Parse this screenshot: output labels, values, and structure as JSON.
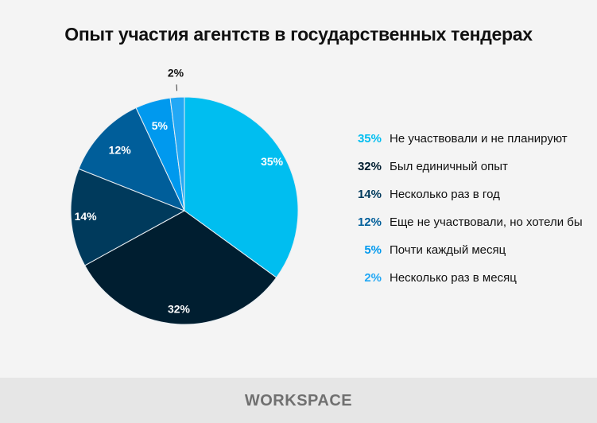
{
  "chart_data": {
    "type": "pie",
    "title": "Опыт участия агентств в государственных тендерах",
    "slices": [
      {
        "label": "Не участвовали и не планируют",
        "value": 35,
        "display": "35%",
        "color": "#00bef0",
        "label_color": "#ffffff"
      },
      {
        "label": "Был единичный опыт",
        "value": 32,
        "display": "32%",
        "color": "#001e30",
        "label_color": "#ffffff"
      },
      {
        "label": "Несколько раз в год",
        "value": 14,
        "display": "14%",
        "color": "#003a5c",
        "label_color": "#ffffff"
      },
      {
        "label": "Еще не участвовали, но хотели бы",
        "value": 12,
        "display": "12%",
        "color": "#005e9a",
        "label_color": "#ffffff"
      },
      {
        "label": "Почти каждый месяц",
        "value": 5,
        "display": "5%",
        "color": "#0099ee",
        "label_color": "#ffffff"
      },
      {
        "label": "Несколько раз в месяц",
        "value": 2,
        "display": "2%",
        "color": "#22a8f5",
        "label_color": "#111111"
      }
    ],
    "legend_placement": "right"
  },
  "footer": {
    "logo": "WORKSPACE"
  }
}
